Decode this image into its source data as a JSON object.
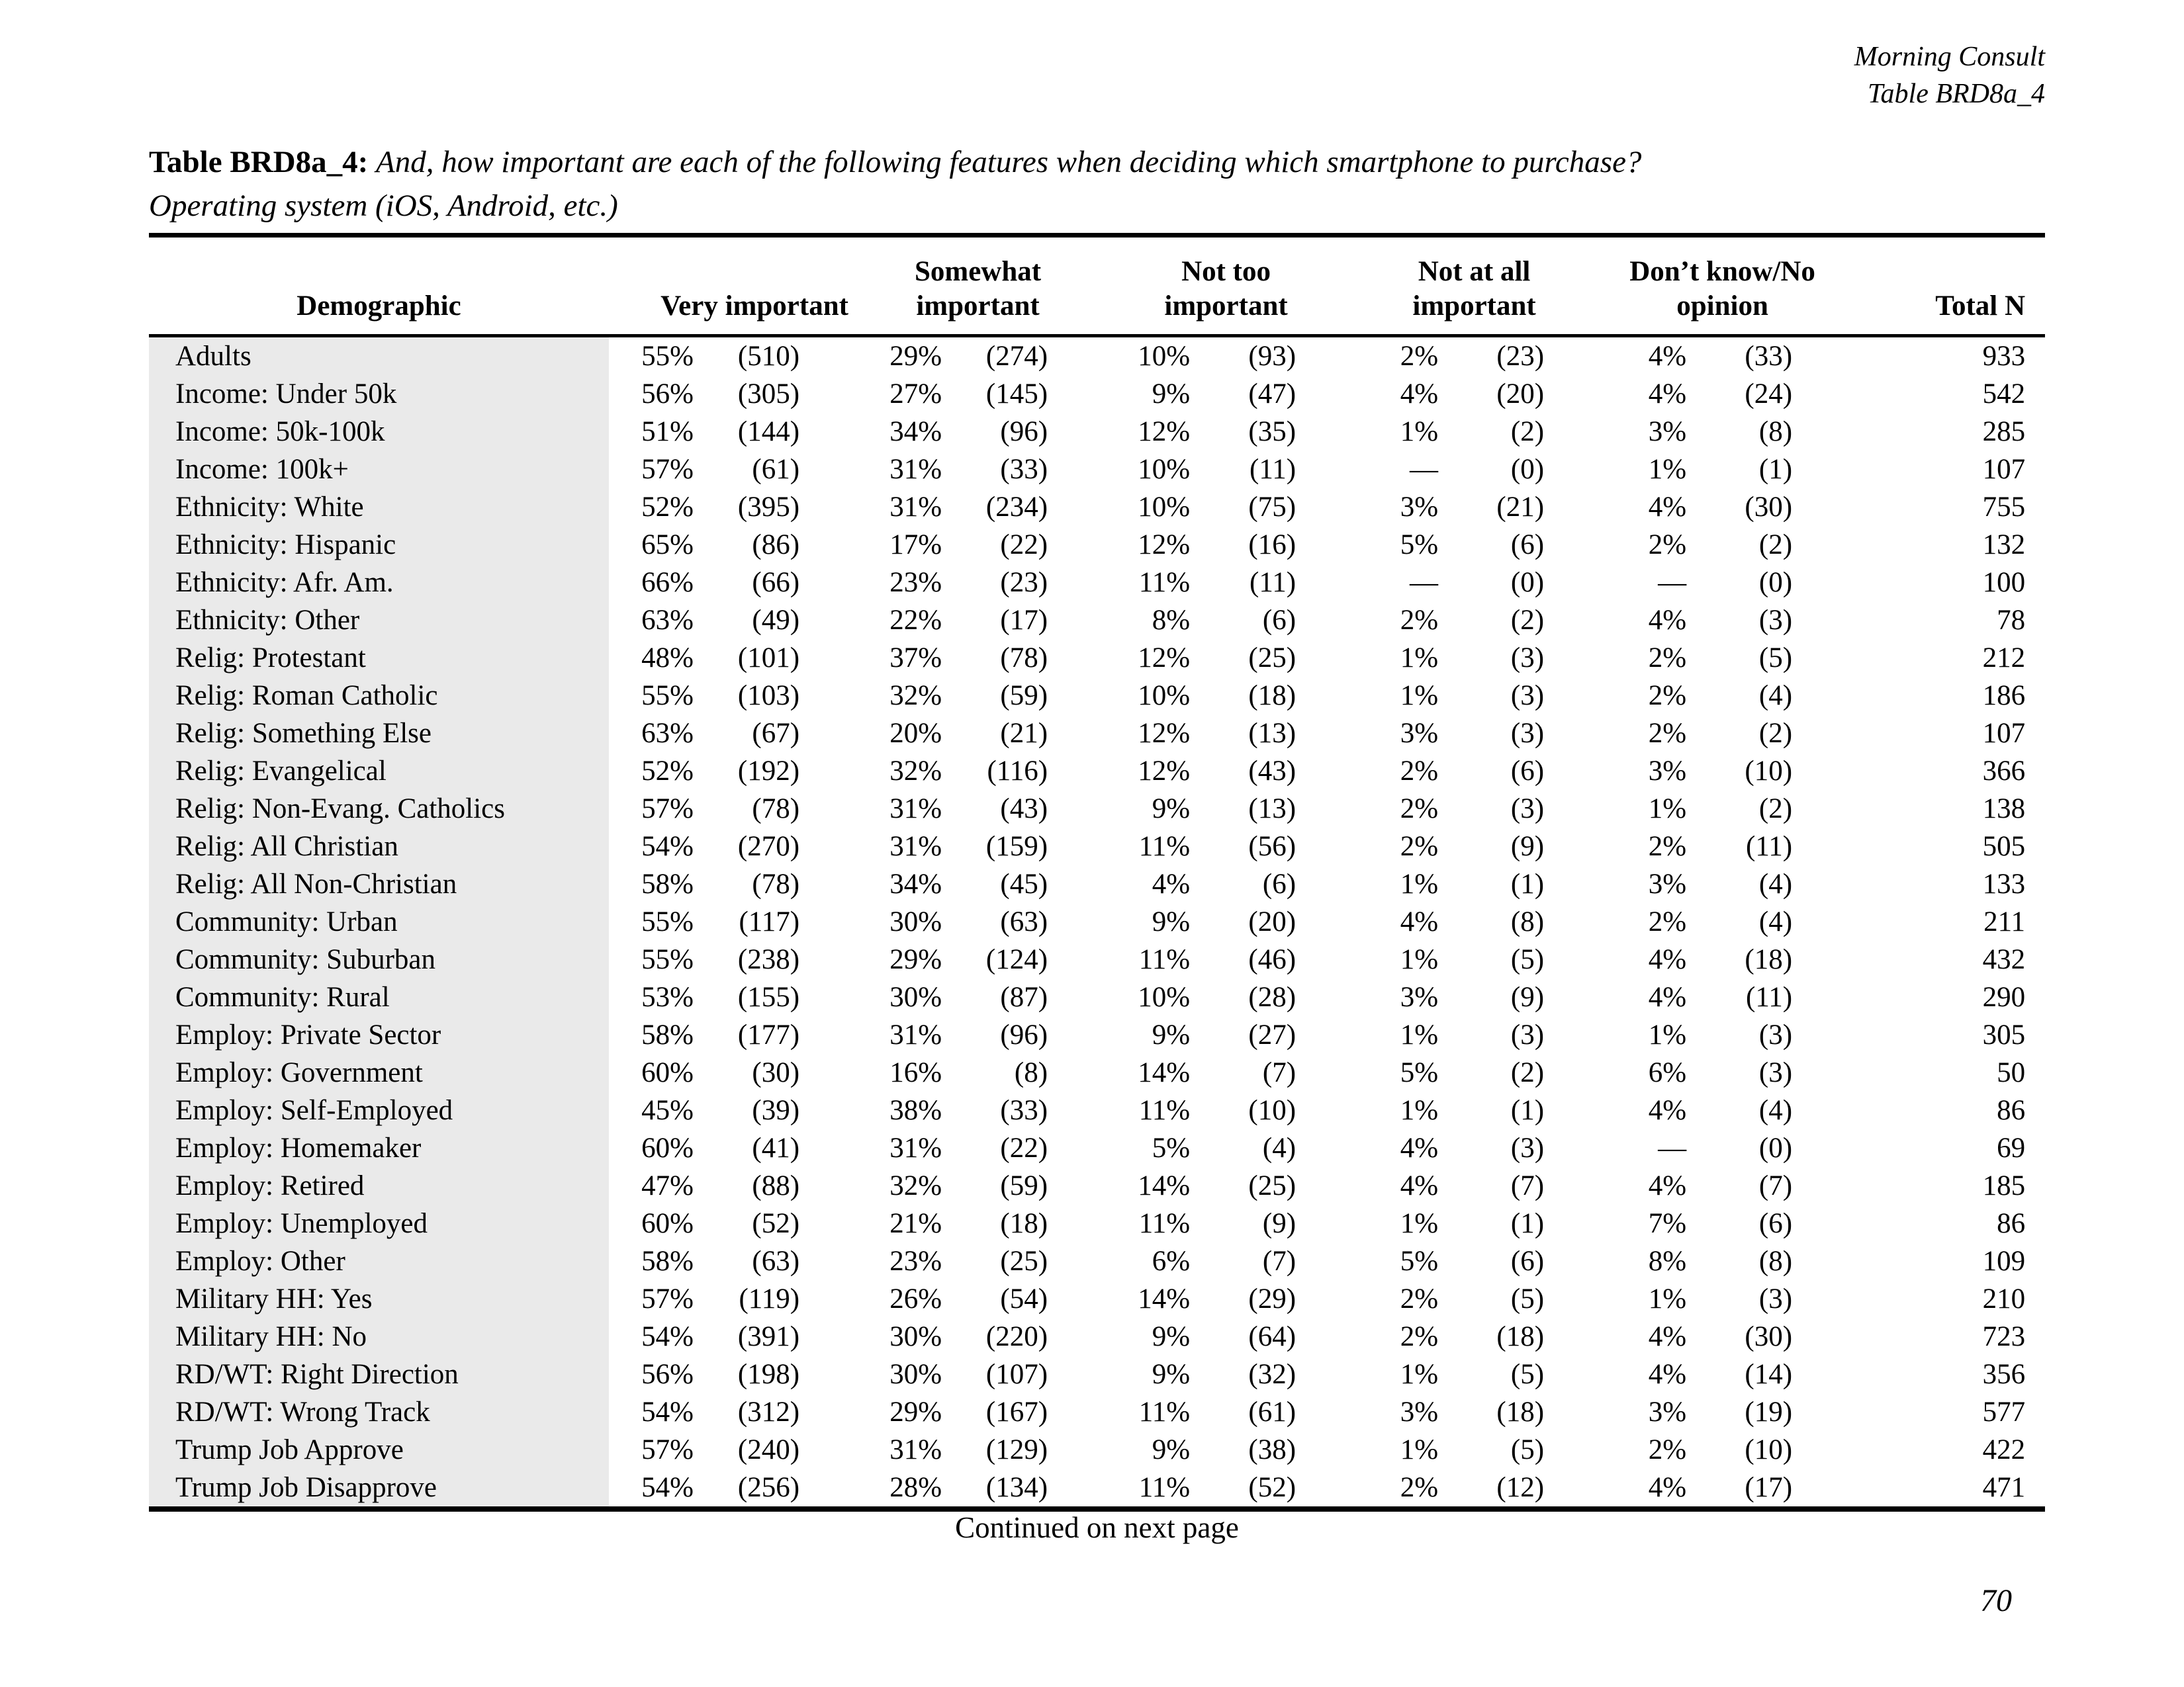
{
  "page_header": {
    "brand": "Morning Consult",
    "table_ref": "Table BRD8a_4"
  },
  "title": {
    "bold": "Table BRD8a_4:",
    "question": "And, how important are each of the following features when deciding which smartphone to purchase?",
    "subject": "Operating system (iOS, Android, etc.)"
  },
  "colors": {
    "demo_column_bg": "#eaeaea"
  },
  "table": {
    "demo_header": "Demographic",
    "group_headers": [
      {
        "line1": "",
        "line2": "Very important"
      },
      {
        "line1": "Somewhat",
        "line2": "important"
      },
      {
        "line1": "Not too",
        "line2": "important"
      },
      {
        "line1": "Not at all",
        "line2": "important"
      },
      {
        "line1": "Don’t know/No",
        "line2": "opinion"
      }
    ],
    "total_header": "Total N",
    "rows": [
      [
        "Adults",
        "55%",
        "(510)",
        "29%",
        "(274)",
        "10%",
        "(93)",
        "2%",
        "(23)",
        "4%",
        "(33)",
        "933"
      ],
      [
        "Income: Under 50k",
        "56%",
        "(305)",
        "27%",
        "(145)",
        "9%",
        "(47)",
        "4%",
        "(20)",
        "4%",
        "(24)",
        "542"
      ],
      [
        "Income: 50k-100k",
        "51%",
        "(144)",
        "34%",
        "(96)",
        "12%",
        "(35)",
        "1%",
        "(2)",
        "3%",
        "(8)",
        "285"
      ],
      [
        "Income: 100k+",
        "57%",
        "(61)",
        "31%",
        "(33)",
        "10%",
        "(11)",
        "—",
        "(0)",
        "1%",
        "(1)",
        "107"
      ],
      [
        "Ethnicity: White",
        "52%",
        "(395)",
        "31%",
        "(234)",
        "10%",
        "(75)",
        "3%",
        "(21)",
        "4%",
        "(30)",
        "755"
      ],
      [
        "Ethnicity: Hispanic",
        "65%",
        "(86)",
        "17%",
        "(22)",
        "12%",
        "(16)",
        "5%",
        "(6)",
        "2%",
        "(2)",
        "132"
      ],
      [
        "Ethnicity: Afr. Am.",
        "66%",
        "(66)",
        "23%",
        "(23)",
        "11%",
        "(11)",
        "—",
        "(0)",
        "—",
        "(0)",
        "100"
      ],
      [
        "Ethnicity: Other",
        "63%",
        "(49)",
        "22%",
        "(17)",
        "8%",
        "(6)",
        "2%",
        "(2)",
        "4%",
        "(3)",
        "78"
      ],
      [
        "Relig: Protestant",
        "48%",
        "(101)",
        "37%",
        "(78)",
        "12%",
        "(25)",
        "1%",
        "(3)",
        "2%",
        "(5)",
        "212"
      ],
      [
        "Relig: Roman Catholic",
        "55%",
        "(103)",
        "32%",
        "(59)",
        "10%",
        "(18)",
        "1%",
        "(3)",
        "2%",
        "(4)",
        "186"
      ],
      [
        "Relig: Something Else",
        "63%",
        "(67)",
        "20%",
        "(21)",
        "12%",
        "(13)",
        "3%",
        "(3)",
        "2%",
        "(2)",
        "107"
      ],
      [
        "Relig: Evangelical",
        "52%",
        "(192)",
        "32%",
        "(116)",
        "12%",
        "(43)",
        "2%",
        "(6)",
        "3%",
        "(10)",
        "366"
      ],
      [
        "Relig: Non-Evang. Catholics",
        "57%",
        "(78)",
        "31%",
        "(43)",
        "9%",
        "(13)",
        "2%",
        "(3)",
        "1%",
        "(2)",
        "138"
      ],
      [
        "Relig: All Christian",
        "54%",
        "(270)",
        "31%",
        "(159)",
        "11%",
        "(56)",
        "2%",
        "(9)",
        "2%",
        "(11)",
        "505"
      ],
      [
        "Relig: All Non-Christian",
        "58%",
        "(78)",
        "34%",
        "(45)",
        "4%",
        "(6)",
        "1%",
        "(1)",
        "3%",
        "(4)",
        "133"
      ],
      [
        "Community: Urban",
        "55%",
        "(117)",
        "30%",
        "(63)",
        "9%",
        "(20)",
        "4%",
        "(8)",
        "2%",
        "(4)",
        "211"
      ],
      [
        "Community: Suburban",
        "55%",
        "(238)",
        "29%",
        "(124)",
        "11%",
        "(46)",
        "1%",
        "(5)",
        "4%",
        "(18)",
        "432"
      ],
      [
        "Community: Rural",
        "53%",
        "(155)",
        "30%",
        "(87)",
        "10%",
        "(28)",
        "3%",
        "(9)",
        "4%",
        "(11)",
        "290"
      ],
      [
        "Employ: Private Sector",
        "58%",
        "(177)",
        "31%",
        "(96)",
        "9%",
        "(27)",
        "1%",
        "(3)",
        "1%",
        "(3)",
        "305"
      ],
      [
        "Employ: Government",
        "60%",
        "(30)",
        "16%",
        "(8)",
        "14%",
        "(7)",
        "5%",
        "(2)",
        "6%",
        "(3)",
        "50"
      ],
      [
        "Employ: Self-Employed",
        "45%",
        "(39)",
        "38%",
        "(33)",
        "11%",
        "(10)",
        "1%",
        "(1)",
        "4%",
        "(4)",
        "86"
      ],
      [
        "Employ: Homemaker",
        "60%",
        "(41)",
        "31%",
        "(22)",
        "5%",
        "(4)",
        "4%",
        "(3)",
        "—",
        "(0)",
        "69"
      ],
      [
        "Employ: Retired",
        "47%",
        "(88)",
        "32%",
        "(59)",
        "14%",
        "(25)",
        "4%",
        "(7)",
        "4%",
        "(7)",
        "185"
      ],
      [
        "Employ: Unemployed",
        "60%",
        "(52)",
        "21%",
        "(18)",
        "11%",
        "(9)",
        "1%",
        "(1)",
        "7%",
        "(6)",
        "86"
      ],
      [
        "Employ: Other",
        "58%",
        "(63)",
        "23%",
        "(25)",
        "6%",
        "(7)",
        "5%",
        "(6)",
        "8%",
        "(8)",
        "109"
      ],
      [
        "Military HH: Yes",
        "57%",
        "(119)",
        "26%",
        "(54)",
        "14%",
        "(29)",
        "2%",
        "(5)",
        "1%",
        "(3)",
        "210"
      ],
      [
        "Military HH: No",
        "54%",
        "(391)",
        "30%",
        "(220)",
        "9%",
        "(64)",
        "2%",
        "(18)",
        "4%",
        "(30)",
        "723"
      ],
      [
        "RD/WT: Right Direction",
        "56%",
        "(198)",
        "30%",
        "(107)",
        "9%",
        "(32)",
        "1%",
        "(5)",
        "4%",
        "(14)",
        "356"
      ],
      [
        "RD/WT: Wrong Track",
        "54%",
        "(312)",
        "29%",
        "(167)",
        "11%",
        "(61)",
        "3%",
        "(18)",
        "3%",
        "(19)",
        "577"
      ],
      [
        "Trump Job Approve",
        "57%",
        "(240)",
        "31%",
        "(129)",
        "9%",
        "(38)",
        "1%",
        "(5)",
        "2%",
        "(10)",
        "422"
      ],
      [
        "Trump Job Disapprove",
        "54%",
        "(256)",
        "28%",
        "(134)",
        "11%",
        "(52)",
        "2%",
        "(12)",
        "4%",
        "(17)",
        "471"
      ]
    ]
  },
  "footer": {
    "continued": "Continued on next page",
    "page_number": "70"
  }
}
